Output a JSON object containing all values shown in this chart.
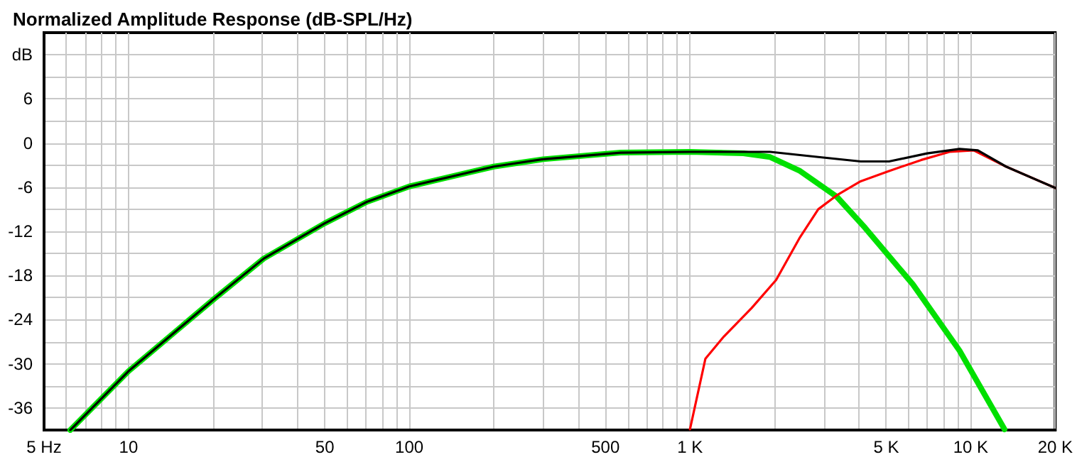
{
  "chart_data": {
    "type": "line",
    "title": "Normalized Amplitude Response (dB-SPL/Hz)",
    "series": [
      {
        "color": "#00e000",
        "x": [
          6.2,
          10,
          20.3,
          30.3,
          50,
          70.6,
          100,
          200,
          300,
          567,
          1000,
          1550,
          1930,
          2466,
          3335,
          4200,
          6220,
          9120,
          13200
        ],
        "values": [
          -39,
          -31,
          -21.1,
          -15.7,
          -10.9,
          -8,
          -5.9,
          -3.2,
          -2.2,
          -1.3,
          -1.2,
          -1.4,
          -1.9,
          -3.8,
          -7.3,
          -11.5,
          -19.2,
          -28.2,
          -38.9
        ]
      },
      {
        "color": "#ff0000",
        "x": [
          1000,
          1135,
          1320,
          1660,
          2027,
          2466,
          2864,
          3335,
          4055,
          5120,
          6670,
          8410,
          10240,
          13360,
          20000
        ],
        "values": [
          -38.9,
          -29.3,
          -26.3,
          -22.4,
          -18.6,
          -12.8,
          -9,
          -7.1,
          -5.2,
          -3.8,
          -2.3,
          -1.2,
          -1,
          -3.2,
          -6.1
        ]
      },
      {
        "color": "#000000",
        "x": [
          6.2,
          10,
          20.3,
          30.3,
          50,
          70.6,
          100,
          200,
          300,
          567,
          1000,
          1930,
          2864,
          4055,
          5120,
          7000,
          9120,
          10600,
          13360,
          20000
        ],
        "values": [
          -39,
          -31,
          -21.1,
          -15.7,
          -10.9,
          -8,
          -5.9,
          -3.2,
          -2.2,
          -1.3,
          -1.2,
          -1.2,
          -1.9,
          -2.5,
          -2.5,
          -1.4,
          -0.8,
          -1,
          -3.2,
          -6.1
        ]
      }
    ],
    "log": "x",
    "xlim": [
      5,
      20000
    ],
    "xticks": [
      {
        "value": 5,
        "label": "5 Hz"
      },
      {
        "value": 6,
        "label": null
      },
      {
        "value": 7,
        "label": null
      },
      {
        "value": 8,
        "label": null
      },
      {
        "value": 9,
        "label": null
      },
      10,
      {
        "value": 20,
        "label": null
      },
      {
        "value": 30,
        "label": null
      },
      {
        "value": 40,
        "label": null
      },
      50,
      {
        "value": 60,
        "label": null
      },
      {
        "value": 70,
        "label": null
      },
      {
        "value": 80,
        "label": null
      },
      {
        "value": 90,
        "label": null
      },
      100,
      {
        "value": 200,
        "label": null
      },
      {
        "value": 300,
        "label": null
      },
      {
        "value": 400,
        "label": null
      },
      500,
      {
        "value": 600,
        "label": null
      },
      {
        "value": 700,
        "label": null
      },
      {
        "value": 800,
        "label": null
      },
      {
        "value": 900,
        "label": null
      },
      {
        "value": 1000,
        "label": "1 K"
      },
      {
        "value": 2000,
        "label": null
      },
      {
        "value": 3000,
        "label": null
      },
      {
        "value": 4000,
        "label": null
      },
      {
        "value": 5000,
        "label": "5 K"
      },
      {
        "value": 6000,
        "label": null
      },
      {
        "value": 7000,
        "label": null
      },
      {
        "value": 8000,
        "label": null
      },
      {
        "value": 9000,
        "label": null
      },
      {
        "value": 10000,
        "label": "10 K"
      },
      {
        "value": 20000,
        "label": "20 K"
      }
    ],
    "ylim": [
      -39,
      15
    ],
    "yticks": [
      -36,
      {
        "value": -33,
        "label": null
      },
      -30,
      {
        "value": -27,
        "label": null
      },
      -24,
      {
        "value": -21,
        "label": null
      },
      -18,
      {
        "value": -15,
        "label": null
      },
      -12,
      {
        "value": -9,
        "label": null
      },
      -6,
      {
        "value": -3,
        "label": null
      },
      0,
      {
        "value": 3,
        "label": null
      },
      6,
      {
        "value": 9,
        "label": null
      },
      {
        "value": 12,
        "label": "dB"
      }
    ],
    "grid": true,
    "marker": "none",
    "line_style": "solid"
  }
}
